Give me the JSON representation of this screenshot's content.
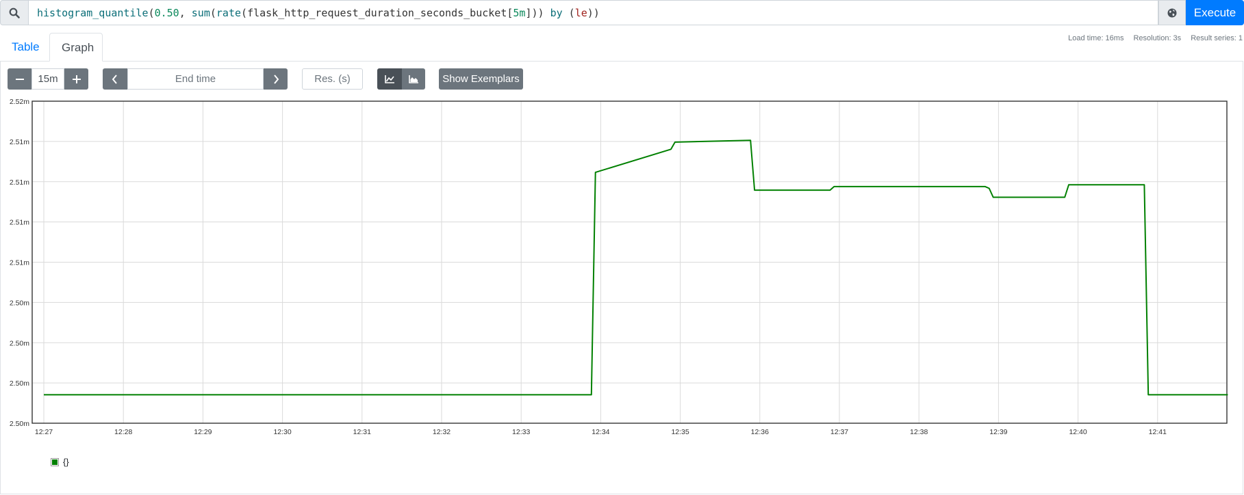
{
  "query": {
    "tokens": [
      {
        "t": "histogram_quantile",
        "c": "t-fn"
      },
      {
        "t": "(",
        "c": "t-p"
      },
      {
        "t": "0.50",
        "c": "t-num"
      },
      {
        "t": ", ",
        "c": "t-p"
      },
      {
        "t": "sum",
        "c": "t-fn"
      },
      {
        "t": "(",
        "c": "t-p"
      },
      {
        "t": "rate",
        "c": "t-fn"
      },
      {
        "t": "(",
        "c": "t-p"
      },
      {
        "t": "flask_http_request_duration_seconds_bucket",
        "c": "t-id"
      },
      {
        "t": "[",
        "c": "t-p"
      },
      {
        "t": "5m",
        "c": "t-num"
      },
      {
        "t": "]))",
        "c": "t-p"
      },
      {
        "t": " by ",
        "c": "t-kw"
      },
      {
        "t": "(",
        "c": "t-p"
      },
      {
        "t": "le",
        "c": "t-lbl"
      },
      {
        "t": "))",
        "c": "t-p"
      }
    ],
    "execute_label": "Execute"
  },
  "tabs": {
    "table": "Table",
    "graph": "Graph"
  },
  "stats": {
    "load_time": "Load time: 16ms",
    "resolution": "Resolution: 3s",
    "result_series": "Result series: 1"
  },
  "controls": {
    "range_value": "15m",
    "end_time_placeholder": "End time",
    "resolution_placeholder": "Res. (s)",
    "exemplars_label": "Show Exemplars"
  },
  "colors": {
    "accent": "#007bff",
    "series": "#008000"
  },
  "chart_data": {
    "type": "line",
    "y_tick_labels": [
      "2.52m",
      "2.51m",
      "2.51m",
      "2.51m",
      "2.51m",
      "2.50m",
      "2.50m",
      "2.50m",
      "2.50m"
    ],
    "x_tick_labels": [
      "12:27",
      "12:28",
      "12:29",
      "12:30",
      "12:31",
      "12:32",
      "12:33",
      "12:34",
      "12:35",
      "12:36",
      "12:37",
      "12:38",
      "12:39",
      "12:40",
      "12:41"
    ],
    "ylim": [
      2.4984,
      2.5165
    ],
    "grid": true,
    "legend_placement": "bottom-left",
    "series": [
      {
        "name": "{}",
        "x": [
          "12:27:00",
          "12:33:53",
          "12:33:56",
          "12:34:53",
          "12:34:56",
          "12:35:53",
          "12:35:56",
          "12:36:53",
          "12:36:56",
          "12:37:50",
          "12:38:50",
          "12:38:53",
          "12:38:56",
          "12:39:50",
          "12:39:53",
          "12:40:50",
          "12:40:53",
          "12:41:53"
        ],
        "y": [
          2.5,
          2.5,
          2.5125,
          2.5138,
          2.5142,
          2.5143,
          2.5115,
          2.5115,
          2.5117,
          2.5117,
          2.5117,
          2.5116,
          2.5111,
          2.5111,
          2.5118,
          2.5118,
          2.5,
          2.5
        ]
      }
    ]
  }
}
